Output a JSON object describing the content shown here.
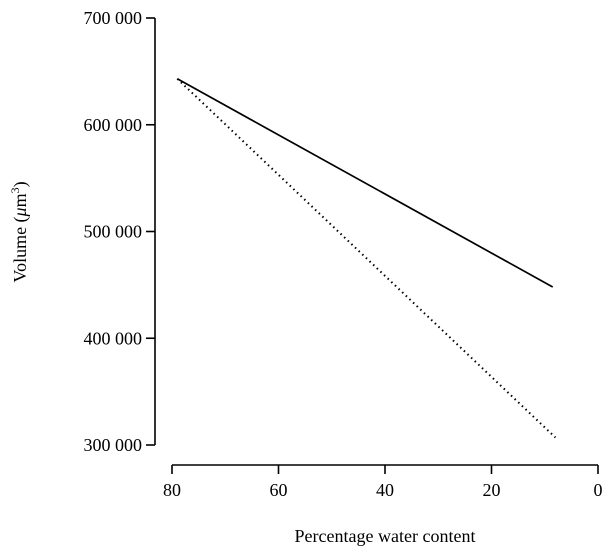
{
  "chart_data": {
    "type": "line",
    "xlabel": "Percentage water content",
    "ylabel_prefix": "Volume (",
    "ylabel_mu": "μ",
    "ylabel_unit": "m",
    "ylabel_exp": "3",
    "ylabel_suffix": ")",
    "xlim": [
      80,
      0
    ],
    "ylim": [
      300000,
      700000
    ],
    "x_ticks": [
      80,
      60,
      40,
      20,
      0
    ],
    "y_ticks": [
      300000,
      400000,
      500000,
      600000,
      700000
    ],
    "x_tick_labels": [
      "80",
      "60",
      "40",
      "20",
      "0"
    ],
    "y_tick_labels": [
      "300 000",
      "400 000",
      "500 000",
      "600 000",
      "700 000"
    ],
    "grid": false,
    "series": [
      {
        "style": "solid",
        "color": "#000000",
        "x": [
          79,
          8.5
        ],
        "y": [
          643000,
          448000
        ]
      },
      {
        "style": "dotted",
        "color": "#000000",
        "x": [
          79,
          8
        ],
        "y": [
          643000,
          307000
        ]
      }
    ]
  }
}
